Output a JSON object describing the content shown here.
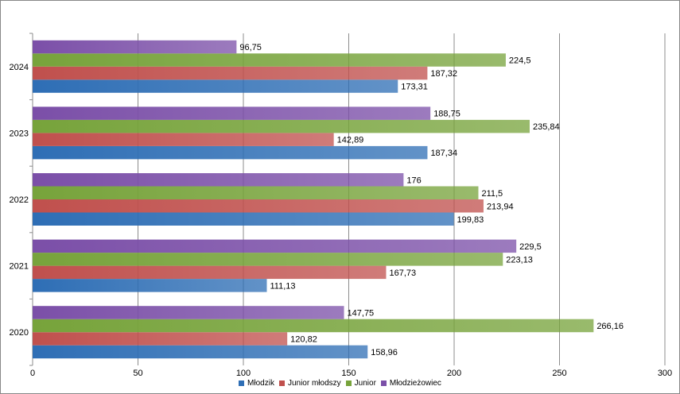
{
  "chart_data": {
    "type": "bar",
    "orientation": "horizontal",
    "categories": [
      "2020",
      "2021",
      "2022",
      "2023",
      "2024"
    ],
    "series": [
      {
        "name": "Młodzik",
        "color": "#2E6EB5",
        "values": [
          158.96,
          111.13,
          199.83,
          187.34,
          173.31
        ],
        "labels": [
          "158,96",
          "111,13",
          "199,83",
          "187,34",
          "173,31"
        ]
      },
      {
        "name": "Junior młodszy",
        "color": "#C0504D",
        "values": [
          120.82,
          167.73,
          213.94,
          142.89,
          187.32
        ],
        "labels": [
          "120,82",
          "167,73",
          "213,94",
          "142,89",
          "187,32"
        ]
      },
      {
        "name": "Junior",
        "color": "#77A33B",
        "values": [
          266.16,
          223.13,
          211.5,
          235.84,
          224.5
        ],
        "labels": [
          "266,16",
          "223,13",
          "211,5",
          "235,84",
          "224,5"
        ]
      },
      {
        "name": "Młodzieżowiec",
        "color": "#7B4FA8",
        "values": [
          147.75,
          229.5,
          176,
          188.75,
          96.75
        ],
        "labels": [
          "147,75",
          "229,5",
          "176",
          "188,75",
          "96,75"
        ]
      }
    ],
    "xlim": [
      0,
      300
    ],
    "xticks": [
      "0",
      "50",
      "100",
      "150",
      "200",
      "250",
      "300"
    ],
    "grid": true,
    "legend_position": "bottom"
  }
}
